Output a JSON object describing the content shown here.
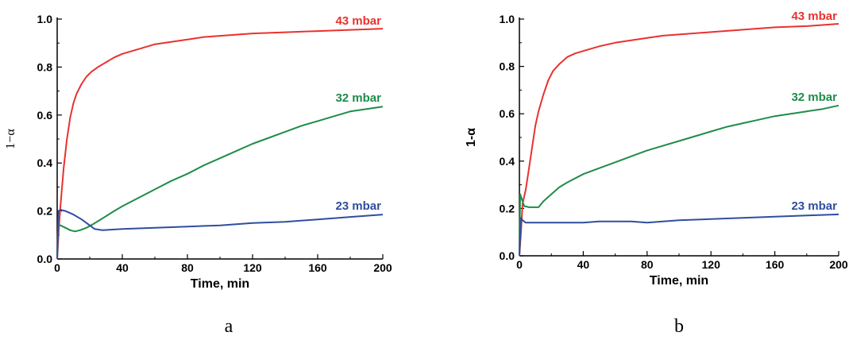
{
  "chart_data": [
    {
      "type": "line",
      "panel_label": "a",
      "xlabel": "Time, min",
      "ylabel": "1−α",
      "xlim": [
        0,
        200
      ],
      "ylim": [
        0.0,
        1.0
      ],
      "x_ticks": [
        "0",
        "40",
        "80",
        "120",
        "160",
        "200"
      ],
      "y_ticks": [
        "0.0",
        "0.2",
        "0.4",
        "0.6",
        "0.8",
        "1.0"
      ],
      "grid": false,
      "legend": "inline labels at right",
      "series": [
        {
          "name": "43 mbar",
          "color": "#e8322f",
          "points": [
            [
              0,
              0.0
            ],
            [
              1,
              0.12
            ],
            [
              2,
              0.22
            ],
            [
              4,
              0.38
            ],
            [
              6,
              0.5
            ],
            [
              8,
              0.59
            ],
            [
              10,
              0.65
            ],
            [
              12,
              0.69
            ],
            [
              15,
              0.73
            ],
            [
              18,
              0.76
            ],
            [
              21,
              0.78
            ],
            [
              25,
              0.8
            ],
            [
              30,
              0.82
            ],
            [
              35,
              0.84
            ],
            [
              40,
              0.855
            ],
            [
              50,
              0.875
            ],
            [
              60,
              0.895
            ],
            [
              70,
              0.905
            ],
            [
              80,
              0.915
            ],
            [
              90,
              0.925
            ],
            [
              100,
              0.93
            ],
            [
              120,
              0.94
            ],
            [
              140,
              0.945
            ],
            [
              160,
              0.95
            ],
            [
              180,
              0.955
            ],
            [
              200,
              0.96
            ]
          ]
        },
        {
          "name": "32 mbar",
          "color": "#1f8c4a",
          "points": [
            [
              0,
              0.0
            ],
            [
              0.6,
              0.14
            ],
            [
              2,
              0.14
            ],
            [
              5,
              0.13
            ],
            [
              8,
              0.12
            ],
            [
              11,
              0.115
            ],
            [
              14,
              0.12
            ],
            [
              18,
              0.13
            ],
            [
              22,
              0.145
            ],
            [
              28,
              0.17
            ],
            [
              35,
              0.2
            ],
            [
              40,
              0.22
            ],
            [
              50,
              0.255
            ],
            [
              60,
              0.29
            ],
            [
              70,
              0.325
            ],
            [
              80,
              0.355
            ],
            [
              90,
              0.39
            ],
            [
              100,
              0.42
            ],
            [
              110,
              0.45
            ],
            [
              120,
              0.48
            ],
            [
              130,
              0.505
            ],
            [
              140,
              0.53
            ],
            [
              150,
              0.555
            ],
            [
              160,
              0.575
            ],
            [
              170,
              0.595
            ],
            [
              180,
              0.615
            ],
            [
              190,
              0.625
            ],
            [
              200,
              0.635
            ]
          ]
        },
        {
          "name": "23 mbar",
          "color": "#2f4ea0",
          "points": [
            [
              0,
              0.0
            ],
            [
              0.8,
              0.2
            ],
            [
              2,
              0.205
            ],
            [
              5,
              0.2
            ],
            [
              10,
              0.185
            ],
            [
              15,
              0.165
            ],
            [
              20,
              0.14
            ],
            [
              23,
              0.125
            ],
            [
              28,
              0.12
            ],
            [
              40,
              0.125
            ],
            [
              60,
              0.13
            ],
            [
              80,
              0.135
            ],
            [
              100,
              0.14
            ],
            [
              120,
              0.15
            ],
            [
              140,
              0.155
            ],
            [
              160,
              0.165
            ],
            [
              180,
              0.175
            ],
            [
              200,
              0.185
            ]
          ]
        }
      ]
    },
    {
      "type": "line",
      "panel_label": "b",
      "xlabel": "Time, min",
      "ylabel": "1-α",
      "xlim": [
        0,
        200
      ],
      "ylim": [
        0.0,
        1.0
      ],
      "x_ticks": [
        "0",
        "40",
        "80",
        "120",
        "160",
        "200"
      ],
      "y_ticks": [
        "0.0",
        "0.2",
        "0.4",
        "0.6",
        "0.8",
        "1.0"
      ],
      "grid": false,
      "legend": "inline labels at right",
      "series": [
        {
          "name": "43 mbar",
          "color": "#e8322f",
          "points": [
            [
              0,
              0.0
            ],
            [
              1,
              0.1
            ],
            [
              2,
              0.22
            ],
            [
              4,
              0.28
            ],
            [
              6,
              0.37
            ],
            [
              8,
              0.46
            ],
            [
              10,
              0.55
            ],
            [
              12,
              0.61
            ],
            [
              15,
              0.68
            ],
            [
              18,
              0.74
            ],
            [
              21,
              0.78
            ],
            [
              25,
              0.81
            ],
            [
              30,
              0.84
            ],
            [
              35,
              0.855
            ],
            [
              40,
              0.865
            ],
            [
              50,
              0.885
            ],
            [
              60,
              0.9
            ],
            [
              70,
              0.91
            ],
            [
              80,
              0.92
            ],
            [
              90,
              0.93
            ],
            [
              100,
              0.935
            ],
            [
              120,
              0.945
            ],
            [
              140,
              0.955
            ],
            [
              160,
              0.965
            ],
            [
              180,
              0.97
            ],
            [
              200,
              0.98
            ]
          ]
        },
        {
          "name": "32 mbar",
          "color": "#1f8c4a",
          "points": [
            [
              0,
              0.0
            ],
            [
              0.5,
              0.26
            ],
            [
              1.5,
              0.24
            ],
            [
              3,
              0.21
            ],
            [
              6,
              0.205
            ],
            [
              9,
              0.205
            ],
            [
              12,
              0.205
            ],
            [
              15,
              0.23
            ],
            [
              20,
              0.26
            ],
            [
              25,
              0.29
            ],
            [
              30,
              0.31
            ],
            [
              40,
              0.345
            ],
            [
              50,
              0.37
            ],
            [
              60,
              0.395
            ],
            [
              70,
              0.42
            ],
            [
              80,
              0.445
            ],
            [
              90,
              0.465
            ],
            [
              100,
              0.485
            ],
            [
              110,
              0.505
            ],
            [
              120,
              0.525
            ],
            [
              130,
              0.545
            ],
            [
              140,
              0.56
            ],
            [
              150,
              0.575
            ],
            [
              160,
              0.59
            ],
            [
              170,
              0.6
            ],
            [
              180,
              0.61
            ],
            [
              190,
              0.62
            ],
            [
              200,
              0.635
            ]
          ]
        },
        {
          "name": "23 mbar",
          "color": "#2f4ea0",
          "points": [
            [
              0,
              0.0
            ],
            [
              1,
              0.16
            ],
            [
              2,
              0.15
            ],
            [
              4,
              0.14
            ],
            [
              10,
              0.14
            ],
            [
              20,
              0.14
            ],
            [
              40,
              0.14
            ],
            [
              50,
              0.145
            ],
            [
              70,
              0.145
            ],
            [
              80,
              0.14
            ],
            [
              100,
              0.15
            ],
            [
              120,
              0.155
            ],
            [
              140,
              0.16
            ],
            [
              160,
              0.165
            ],
            [
              180,
              0.17
            ],
            [
              200,
              0.175
            ]
          ]
        }
      ]
    }
  ]
}
